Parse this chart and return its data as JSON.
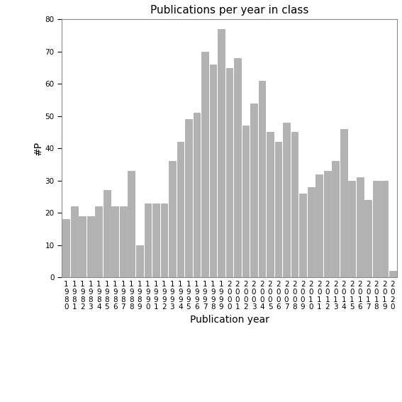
{
  "title": "Publications per year in class",
  "xlabel": "Publication year",
  "ylabel": "#P",
  "bar_color": "#b2b2b2",
  "bar_edgecolor": "#999999",
  "years": [
    1980,
    1981,
    1982,
    1983,
    1984,
    1985,
    1986,
    1987,
    1988,
    1989,
    1990,
    1991,
    1992,
    1993,
    1994,
    1995,
    1996,
    1997,
    1998,
    1999,
    2000,
    2001,
    2002,
    2003,
    2004,
    2005,
    2006,
    2007,
    2008,
    2009,
    2010,
    2011,
    2012,
    2013,
    2014,
    2015,
    2016,
    2017,
    2018,
    2019,
    2020
  ],
  "values": [
    18,
    22,
    19,
    19,
    22,
    27,
    22,
    22,
    33,
    10,
    23,
    23,
    23,
    36,
    42,
    49,
    51,
    70,
    66,
    77,
    65,
    68,
    47,
    54,
    61,
    45,
    42,
    48,
    45,
    26,
    28,
    32,
    33,
    36,
    46,
    30,
    31,
    24,
    30,
    30,
    2
  ],
  "ylim": [
    0,
    80
  ],
  "yticks": [
    0,
    10,
    20,
    30,
    40,
    50,
    60,
    70,
    80
  ],
  "background_color": "#ffffff",
  "title_fontsize": 11,
  "axis_label_fontsize": 10,
  "tick_fontsize": 7.5
}
